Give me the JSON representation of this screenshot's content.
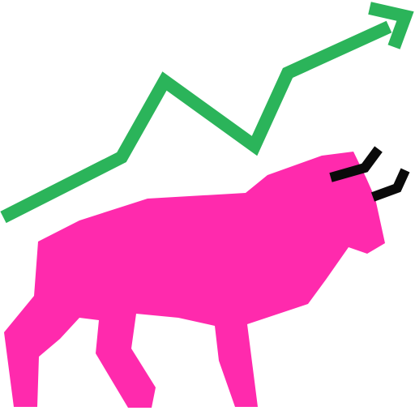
{
  "illustration": {
    "icon": "bull-market-icon",
    "parts": {
      "trend": "upward-trend-arrow-icon",
      "bull": "bull-icon",
      "horns": "bull-horns-icon"
    },
    "colors": {
      "background": "#ffffff",
      "trend_arrow": "#2bb45a",
      "bull_body": "#ff2aad",
      "horns": "#0a0a0a"
    }
  }
}
